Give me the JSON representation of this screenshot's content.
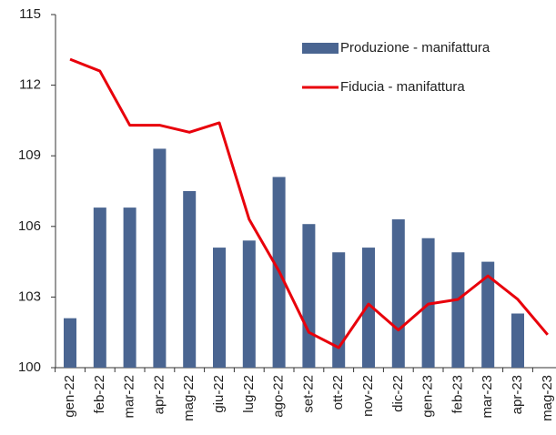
{
  "chart_data": {
    "type": "bar_line",
    "categories": [
      "gen-22",
      "feb-22",
      "mar-22",
      "apr-22",
      "mag-22",
      "giu-22",
      "lug-22",
      "ago-22",
      "set-22",
      "ott-22",
      "nov-22",
      "dic-22",
      "gen-23",
      "feb-23",
      "mar-23",
      "apr-23",
      "mag-23"
    ],
    "series": [
      {
        "name": "Produzione - manifattura",
        "type": "bar",
        "color": "#4a6591",
        "values": [
          102.1,
          106.8,
          106.8,
          109.3,
          107.5,
          105.1,
          105.4,
          108.1,
          106.1,
          104.9,
          105.1,
          106.3,
          105.5,
          104.9,
          104.5,
          102.3,
          null
        ]
      },
      {
        "name": "Fiducia - manifattura",
        "type": "line",
        "color": "#e8000b",
        "values": [
          113.1,
          112.6,
          110.3,
          110.3,
          110.0,
          110.4,
          106.3,
          104.1,
          101.5,
          100.85,
          102.7,
          101.6,
          102.7,
          102.9,
          103.9,
          102.9,
          101.4
        ]
      }
    ],
    "ylim": [
      100,
      115
    ],
    "yticks": [
      100,
      103,
      106,
      109,
      112,
      115
    ],
    "grid": false,
    "legend": "top-right"
  }
}
